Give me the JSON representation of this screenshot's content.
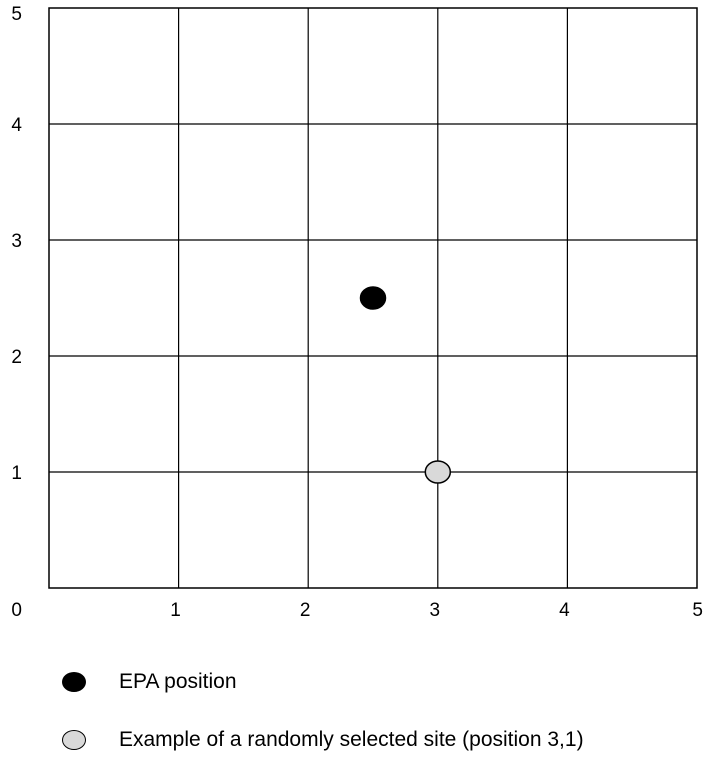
{
  "chart_data": {
    "type": "scatter",
    "title": "",
    "xlabel": "",
    "ylabel": "",
    "xlim": [
      0,
      5
    ],
    "ylim": [
      0,
      5
    ],
    "x_ticks": [
      "1",
      "2",
      "3",
      "4",
      "5"
    ],
    "y_ticks": [
      "1",
      "2",
      "3",
      "4",
      "5"
    ],
    "origin_label": "0",
    "grid": true,
    "series": [
      {
        "name": "EPA position",
        "color": "#000000",
        "points": [
          {
            "x": 2.5,
            "y": 2.5
          }
        ]
      },
      {
        "name": "Example of a randomly selected site (position 3,1)",
        "color": "#d9d9d9",
        "points": [
          {
            "x": 3,
            "y": 1
          }
        ]
      }
    ],
    "legend_position": "bottom-left"
  }
}
